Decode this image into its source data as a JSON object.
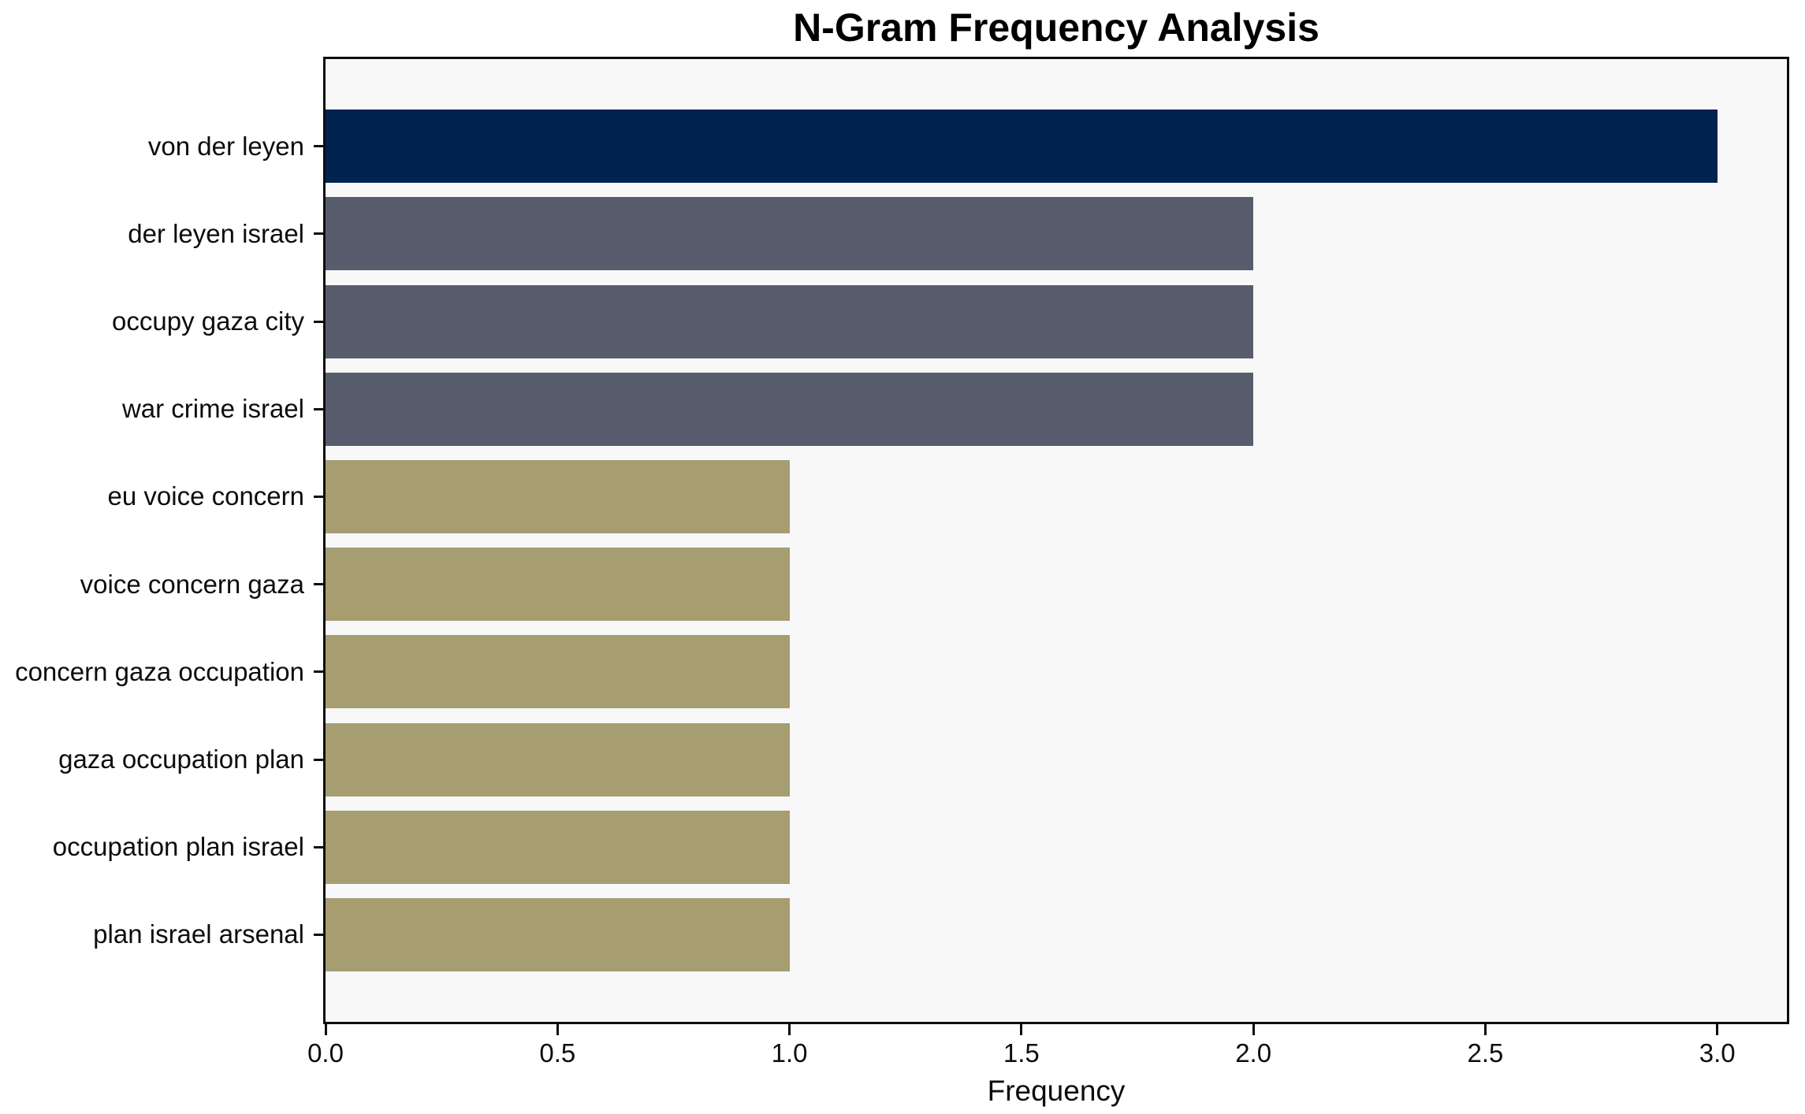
{
  "title": "N-Gram Frequency Analysis",
  "chart_data": {
    "type": "bar",
    "orientation": "horizontal",
    "title": "N-Gram Frequency Analysis",
    "categories": [
      "von der leyen",
      "der leyen israel",
      "occupy gaza city",
      "war crime israel",
      "eu voice concern",
      "voice concern gaza",
      "concern gaza occupation",
      "gaza occupation plan",
      "occupation plan israel",
      "plan israel arsenal"
    ],
    "values": [
      3,
      2,
      2,
      2,
      1,
      1,
      1,
      1,
      1,
      1
    ],
    "bar_colors": [
      "#00224E",
      "#575D6D",
      "#575D6D",
      "#575D6D",
      "#A69D71",
      "#A69D71",
      "#A69D71",
      "#A69D71",
      "#A69D71",
      "#A69D71"
    ],
    "xlabel": "Frequency",
    "ylabel": "",
    "xlim": [
      0,
      3.15
    ],
    "xticks": [
      0.0,
      0.5,
      1.0,
      1.5,
      2.0,
      2.5,
      3.0
    ],
    "xtick_labels": [
      "0.0",
      "0.5",
      "1.0",
      "1.5",
      "2.0",
      "2.5",
      "3.0"
    ],
    "grid": false,
    "legend": null,
    "plot_background": "#F8F8F8",
    "figure_background": "#FFFFFF",
    "spine_color": "#0d0d0d"
  }
}
